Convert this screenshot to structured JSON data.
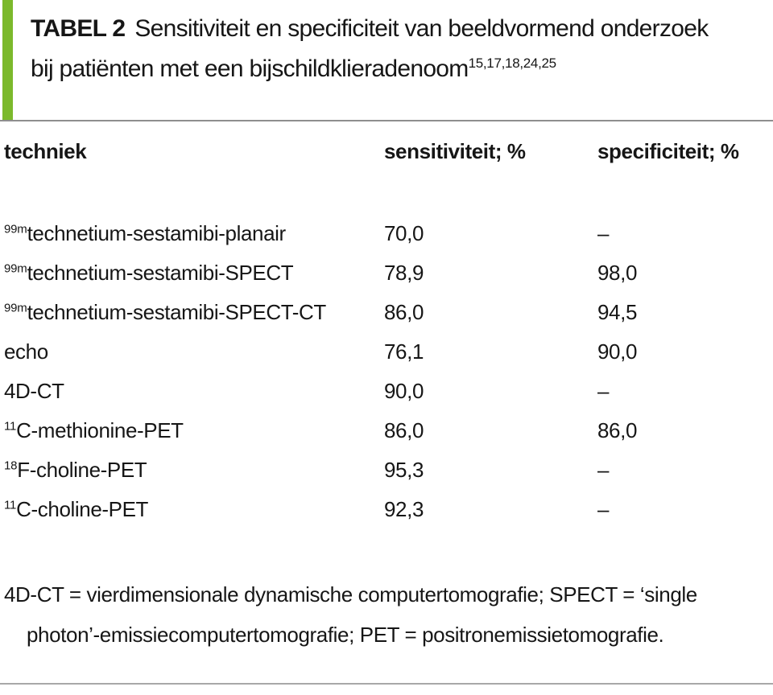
{
  "table": {
    "accent_color": "#7CB92C",
    "label": "TABEL 2",
    "title_line1": "Sensitiviteit en specificiteit van beeldvormend onderzoek",
    "title_line2": "bij patiënten met een bijschildklieradenoom",
    "title_refs": "15,17,18,24,25",
    "columns": [
      "techniek",
      "sensitiviteit; %",
      "specificiteit; %"
    ],
    "rows": [
      {
        "isotope": "99m",
        "technique": "technetium-sestamibi-planair",
        "sensitivity": "70,0",
        "specificity": "–"
      },
      {
        "isotope": "99m",
        "technique": "technetium-sestamibi-SPECT",
        "sensitivity": "78,9",
        "specificity": "98,0"
      },
      {
        "isotope": "99m",
        "technique": "technetium-sestamibi-SPECT-CT",
        "sensitivity": "86,0",
        "specificity": "94,5"
      },
      {
        "isotope": "",
        "technique": "echo",
        "sensitivity": "76,1",
        "specificity": "90,0"
      },
      {
        "isotope": "",
        "technique": "4D-CT",
        "sensitivity": "90,0",
        "specificity": "–"
      },
      {
        "isotope": "11",
        "technique": "C-methionine-PET",
        "sensitivity": "86,0",
        "specificity": "86,0"
      },
      {
        "isotope": "18",
        "technique": "F-choline-PET",
        "sensitivity": "95,3",
        "specificity": "–"
      },
      {
        "isotope": "11",
        "technique": "C-choline-PET",
        "sensitivity": "92,3",
        "specificity": "–"
      }
    ],
    "footnote_line1": "4D-CT = vierdimensionale dynamische computertomografie; SPECT = ‘single",
    "footnote_line2": "photon’-emissiecomputertomografie; PET = positronemissietomografie."
  }
}
